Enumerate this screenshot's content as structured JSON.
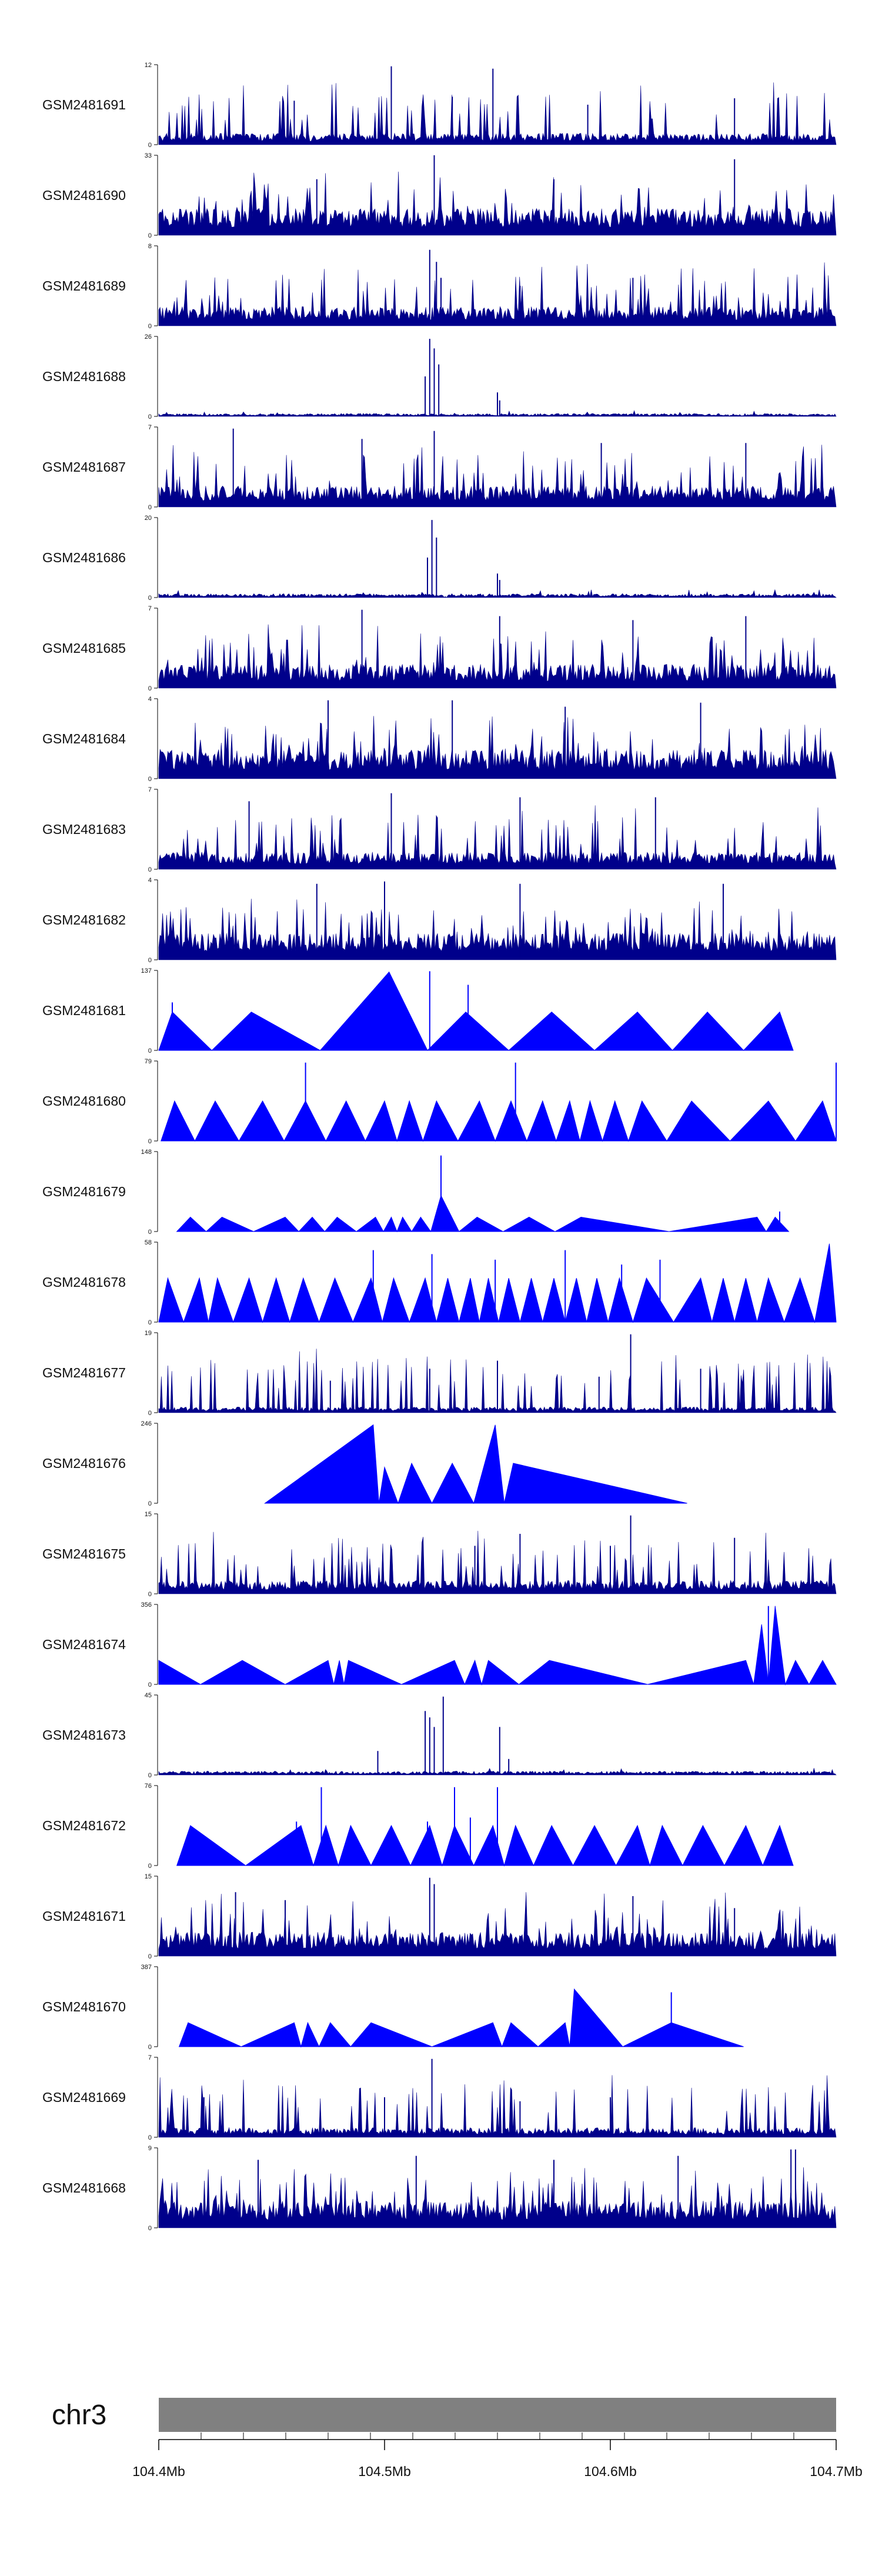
{
  "chart_data": {
    "type": "area",
    "chromosome": "chr3",
    "xlim": [
      104400000,
      104700000
    ],
    "x_ticks": [
      {
        "value": 104400000,
        "label": "104.4Mb"
      },
      {
        "value": 104500000,
        "label": "104.5Mb"
      },
      {
        "value": 104600000,
        "label": "104.6Mb"
      },
      {
        "value": 104700000,
        "label": "104.7Mb"
      }
    ],
    "colors": {
      "signal": "#0000ff",
      "signal_dark": "#00008b",
      "ideogram": "#808080",
      "axis": "#000000"
    },
    "tracks": [
      {
        "name": "GSM2481691",
        "ymax": 12,
        "style": "dense",
        "baseline": 0.12,
        "spikes": [
          [
            104503000,
            0.98
          ],
          [
            104548000,
            0.95
          ],
          [
            104460000,
            0.55
          ],
          [
            104530000,
            0.6
          ],
          [
            104590000,
            0.5
          ],
          [
            104655000,
            0.58
          ]
        ]
      },
      {
        "name": "GSM2481690",
        "ymax": 33,
        "style": "peaks",
        "baseline": 0.28,
        "spikes": [
          [
            104522000,
            1.0
          ],
          [
            104655000,
            0.95
          ],
          [
            104470000,
            0.7
          ],
          [
            104575000,
            0.7
          ]
        ]
      },
      {
        "name": "GSM2481689",
        "ymax": 8,
        "style": "dense",
        "baseline": 0.2,
        "spikes": [
          [
            104520000,
            0.95
          ],
          [
            104523000,
            0.8
          ],
          [
            104525000,
            0.6
          ],
          [
            104560000,
            0.5
          ],
          [
            104610000,
            0.6
          ]
        ]
      },
      {
        "name": "GSM2481688",
        "ymax": 26,
        "style": "focal",
        "baseline": 0.03,
        "spikes": [
          [
            104520000,
            0.97
          ],
          [
            104522000,
            0.85
          ],
          [
            104524000,
            0.65
          ],
          [
            104518000,
            0.5
          ],
          [
            104550000,
            0.3
          ],
          [
            104551000,
            0.2
          ]
        ]
      },
      {
        "name": "GSM2481687",
        "ymax": 7,
        "style": "dense",
        "baseline": 0.22,
        "spikes": [
          [
            104433000,
            0.98
          ],
          [
            104490000,
            0.85
          ],
          [
            104522000,
            0.95
          ],
          [
            104596000,
            0.8
          ],
          [
            104660000,
            0.8
          ]
        ]
      },
      {
        "name": "GSM2481686",
        "ymax": 20,
        "style": "focal",
        "baseline": 0.04,
        "spikes": [
          [
            104521000,
            0.97
          ],
          [
            104523000,
            0.75
          ],
          [
            104519000,
            0.5
          ],
          [
            104550000,
            0.3
          ],
          [
            104551000,
            0.22
          ]
        ]
      },
      {
        "name": "GSM2481685",
        "ymax": 7,
        "style": "dense",
        "baseline": 0.25,
        "spikes": [
          [
            104490000,
            0.98
          ],
          [
            104551000,
            0.9
          ],
          [
            104610000,
            0.85
          ],
          [
            104660000,
            0.9
          ]
        ]
      },
      {
        "name": "GSM2481684",
        "ymax": 4,
        "style": "dense",
        "baseline": 0.3,
        "spikes": [
          [
            104475000,
            0.98
          ],
          [
            104530000,
            0.98
          ],
          [
            104580000,
            0.9
          ],
          [
            104640000,
            0.95
          ]
        ]
      },
      {
        "name": "GSM2481683",
        "ymax": 7,
        "style": "dense",
        "baseline": 0.18,
        "spikes": [
          [
            104503000,
            0.95
          ],
          [
            104560000,
            0.9
          ],
          [
            104620000,
            0.9
          ],
          [
            104440000,
            0.85
          ]
        ]
      },
      {
        "name": "GSM2481682",
        "ymax": 4,
        "style": "dense",
        "baseline": 0.28,
        "spikes": [
          [
            104500000,
            0.98
          ],
          [
            104470000,
            0.95
          ],
          [
            104560000,
            0.95
          ],
          [
            104650000,
            0.95
          ]
        ]
      },
      {
        "name": "GSM2481681",
        "ymax": 137,
        "style": "triangles",
        "peaks": [
          [
            104406000,
            0.48
          ],
          [
            104441000,
            0.48
          ],
          [
            104502000,
            0.98
          ],
          [
            104536000,
            0.48
          ],
          [
            104574000,
            0.48
          ],
          [
            104612000,
            0.48
          ],
          [
            104643000,
            0.48
          ],
          [
            104675000,
            0.48
          ]
        ],
        "spikes": [
          [
            104406000,
            0.6
          ],
          [
            104520000,
            0.99
          ],
          [
            104537000,
            0.82
          ]
        ]
      },
      {
        "name": "GSM2481680",
        "ymax": 79,
        "style": "triangles",
        "peaks": [
          [
            104407000,
            0.5
          ],
          [
            104425000,
            0.5
          ],
          [
            104446000,
            0.5
          ],
          [
            104465000,
            0.5
          ],
          [
            104483000,
            0.5
          ],
          [
            104500000,
            0.5
          ],
          [
            104511000,
            0.5
          ],
          [
            104523000,
            0.5
          ],
          [
            104542000,
            0.5
          ],
          [
            104556000,
            0.5
          ],
          [
            104570000,
            0.5
          ],
          [
            104582000,
            0.5
          ],
          [
            104591000,
            0.5
          ],
          [
            104602000,
            0.5
          ],
          [
            104614000,
            0.5
          ],
          [
            104636000,
            0.5
          ],
          [
            104670000,
            0.5
          ],
          [
            104694000,
            0.5
          ]
        ],
        "spikes": [
          [
            104465000,
            0.98
          ],
          [
            104558000,
            0.98
          ],
          [
            104700000,
            0.98
          ]
        ]
      },
      {
        "name": "GSM2481679",
        "ymax": 148,
        "style": "triangles",
        "peaks": [
          [
            104414000,
            0.18
          ],
          [
            104428000,
            0.18
          ],
          [
            104456000,
            0.18
          ],
          [
            104468000,
            0.18
          ],
          [
            104479000,
            0.18
          ],
          [
            104496000,
            0.18
          ],
          [
            104503000,
            0.18
          ],
          [
            104508000,
            0.18
          ],
          [
            104516000,
            0.18
          ],
          [
            104525000,
            0.45
          ],
          [
            104541000,
            0.18
          ],
          [
            104564000,
            0.18
          ],
          [
            104587000,
            0.18
          ],
          [
            104665000,
            0.18
          ],
          [
            104673000,
            0.18
          ]
        ],
        "spikes": [
          [
            104525000,
            0.95
          ],
          [
            104675000,
            0.25
          ]
        ]
      },
      {
        "name": "GSM2481678",
        "ymax": 58,
        "style": "triangles",
        "peaks": [
          [
            104404000,
            0.55
          ],
          [
            104418000,
            0.55
          ],
          [
            104426000,
            0.55
          ],
          [
            104440000,
            0.55
          ],
          [
            104452000,
            0.55
          ],
          [
            104464000,
            0.55
          ],
          [
            104478000,
            0.55
          ],
          [
            104494000,
            0.55
          ],
          [
            104504000,
            0.55
          ],
          [
            104518000,
            0.55
          ],
          [
            104528000,
            0.55
          ],
          [
            104538000,
            0.55
          ],
          [
            104546000,
            0.55
          ],
          [
            104555000,
            0.55
          ],
          [
            104565000,
            0.55
          ],
          [
            104575000,
            0.55
          ],
          [
            104585000,
            0.55
          ],
          [
            104594000,
            0.55
          ],
          [
            104604000,
            0.55
          ],
          [
            104616000,
            0.55
          ],
          [
            104640000,
            0.55
          ],
          [
            104650000,
            0.55
          ],
          [
            104660000,
            0.55
          ],
          [
            104670000,
            0.55
          ],
          [
            104684000,
            0.55
          ],
          [
            104697000,
            0.98
          ]
        ],
        "spikes": [
          [
            104495000,
            0.9
          ],
          [
            104521000,
            0.85
          ],
          [
            104549000,
            0.78
          ],
          [
            104580000,
            0.9
          ],
          [
            104605000,
            0.72
          ],
          [
            104622000,
            0.78
          ]
        ]
      },
      {
        "name": "GSM2481677",
        "ymax": 19,
        "style": "dense",
        "baseline": 0.06,
        "spikes": [
          [
            104609000,
            0.98
          ],
          [
            104550000,
            0.65
          ],
          [
            104520000,
            0.55
          ],
          [
            104595000,
            0.45
          ],
          [
            104640000,
            0.55
          ],
          [
            104476000,
            0.4
          ]
        ]
      },
      {
        "name": "GSM2481676",
        "ymax": 246,
        "style": "triangles",
        "peaks": [
          [
            104495000,
            0.98
          ],
          [
            104500000,
            0.45
          ],
          [
            104512000,
            0.5
          ],
          [
            104530000,
            0.5
          ],
          [
            104549000,
            0.98
          ],
          [
            104557000,
            0.5
          ]
        ],
        "extent": [
          104447000,
          104634000
        ],
        "spikes": []
      },
      {
        "name": "GSM2481675",
        "ymax": 15,
        "style": "dense",
        "baseline": 0.14,
        "spikes": [
          [
            104609000,
            0.98
          ],
          [
            104560000,
            0.75
          ],
          [
            104600000,
            0.6
          ],
          [
            104655000,
            0.7
          ],
          [
            104540000,
            0.6
          ]
        ]
      },
      {
        "name": "GSM2481674",
        "ymax": 356,
        "style": "triangles",
        "peaks": [
          [
            104400000,
            0.3
          ],
          [
            104437000,
            0.3
          ],
          [
            104475000,
            0.3
          ],
          [
            104480000,
            0.3
          ],
          [
            104484000,
            0.3
          ],
          [
            104531000,
            0.3
          ],
          [
            104540000,
            0.3
          ],
          [
            104546000,
            0.3
          ],
          [
            104573000,
            0.3
          ],
          [
            104660000,
            0.3
          ],
          [
            104667000,
            0.75
          ],
          [
            104673000,
            0.98
          ],
          [
            104682000,
            0.3
          ],
          [
            104694000,
            0.3
          ]
        ],
        "spikes": [
          [
            104670000,
            0.98
          ]
        ]
      },
      {
        "name": "GSM2481673",
        "ymax": 45,
        "style": "focal",
        "baseline": 0.04,
        "spikes": [
          [
            104526000,
            0.98
          ],
          [
            104518000,
            0.8
          ],
          [
            104520000,
            0.72
          ],
          [
            104522000,
            0.6
          ],
          [
            104551000,
            0.6
          ],
          [
            104497000,
            0.3
          ],
          [
            104555000,
            0.2
          ]
        ]
      },
      {
        "name": "GSM2481672",
        "ymax": 76,
        "style": "triangles",
        "peaks": [
          [
            104414000,
            0.5
          ],
          [
            104463000,
            0.5
          ],
          [
            104474000,
            0.5
          ],
          [
            104485000,
            0.5
          ],
          [
            104503000,
            0.5
          ],
          [
            104520000,
            0.5
          ],
          [
            104531000,
            0.5
          ],
          [
            104548000,
            0.5
          ],
          [
            104558000,
            0.5
          ],
          [
            104574000,
            0.5
          ],
          [
            104593000,
            0.5
          ],
          [
            104612000,
            0.5
          ],
          [
            104623000,
            0.5
          ],
          [
            104641000,
            0.5
          ],
          [
            104660000,
            0.5
          ],
          [
            104675000,
            0.5
          ]
        ],
        "spikes": [
          [
            104472000,
            0.98
          ],
          [
            104461000,
            0.55
          ],
          [
            104531000,
            0.98
          ],
          [
            104550000,
            0.98
          ],
          [
            104538000,
            0.6
          ],
          [
            104519000,
            0.55
          ]
        ]
      },
      {
        "name": "GSM2481671",
        "ymax": 15,
        "style": "dense",
        "baseline": 0.25,
        "spikes": [
          [
            104520000,
            0.98
          ],
          [
            104522000,
            0.9
          ],
          [
            104434000,
            0.8
          ],
          [
            104456000,
            0.7
          ],
          [
            104610000,
            0.75
          ],
          [
            104655000,
            0.6
          ]
        ]
      },
      {
        "name": "GSM2481670",
        "ymax": 387,
        "style": "triangles",
        "peaks": [
          [
            104413000,
            0.3
          ],
          [
            104460000,
            0.3
          ],
          [
            104466000,
            0.3
          ],
          [
            104476000,
            0.3
          ],
          [
            104494000,
            0.3
          ],
          [
            104548000,
            0.3
          ],
          [
            104556000,
            0.3
          ],
          [
            104580000,
            0.3
          ],
          [
            104584000,
            0.72
          ],
          [
            104627000,
            0.3
          ]
        ],
        "extent": [
          104409000,
          104659000
        ],
        "spikes": [
          [
            104627000,
            0.68
          ]
        ]
      },
      {
        "name": "GSM2481669",
        "ymax": 7,
        "style": "dense",
        "baseline": 0.1,
        "spikes": [
          [
            104521000,
            0.98
          ],
          [
            104500000,
            0.5
          ],
          [
            104600000,
            0.5
          ],
          [
            104420000,
            0.5
          ],
          [
            104560000,
            0.45
          ]
        ]
      },
      {
        "name": "GSM2481668",
        "ymax": 9,
        "style": "dense",
        "baseline": 0.28,
        "spikes": [
          [
            104514000,
            0.9
          ],
          [
            104680000,
            0.98
          ],
          [
            104682000,
            0.98
          ],
          [
            104444000,
            0.85
          ],
          [
            104575000,
            0.85
          ],
          [
            104630000,
            0.9
          ]
        ]
      }
    ]
  }
}
